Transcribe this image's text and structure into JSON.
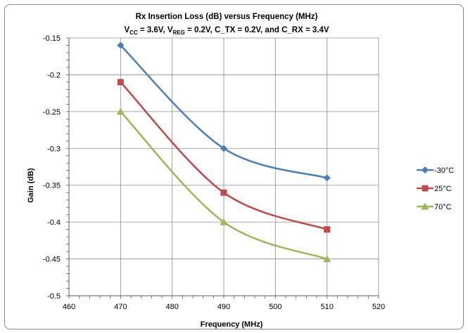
{
  "chart_data": {
    "type": "line",
    "title": "Rx Insertion Loss (dB) versus Frequency (MHz)",
    "subtitle": {
      "vcc_main": "V",
      "vcc_sub": "CC",
      "vcc_rest": " = 3.6V, ",
      "vreg_main": "V",
      "vreg_sub": "REG",
      "vreg_rest": " = 0.2V, C_TX = 0.2V, and C_RX = 3.4V"
    },
    "xlabel": "Frequency (MHz)",
    "ylabel": "Gain (dB)",
    "xlim": [
      460,
      520
    ],
    "ylim": [
      -0.5,
      -0.15
    ],
    "xticks": [
      460,
      470,
      480,
      490,
      500,
      510,
      520
    ],
    "yticks": [
      -0.15,
      -0.2,
      -0.25,
      -0.3,
      -0.35,
      -0.4,
      -0.45,
      -0.5
    ],
    "ytick_labels": [
      "-0.15",
      "-0.2",
      "-0.25",
      "-0.3",
      "-0.35",
      "-0.4",
      "-0.45",
      "-0.5"
    ],
    "grid": true,
    "legend_position": "right",
    "x": [
      470,
      490,
      510
    ],
    "series": [
      {
        "name": "-30°C",
        "values": [
          -0.16,
          -0.3,
          -0.34
        ],
        "color": "#4a7ebb",
        "marker": "diamond"
      },
      {
        "name": "25°C",
        "values": [
          -0.21,
          -0.36,
          -0.41
        ],
        "color": "#be4b48",
        "marker": "square"
      },
      {
        "name": "70°C",
        "values": [
          -0.25,
          -0.4,
          -0.45
        ],
        "color": "#98b954",
        "marker": "triangle"
      }
    ]
  }
}
